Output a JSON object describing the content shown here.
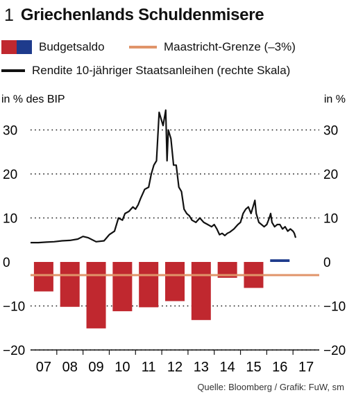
{
  "figure": {
    "number": "1",
    "title": "Griechenlands Schuldenmisere",
    "source": "Quelle: Bloomberg / Grafik: FuW, sm"
  },
  "legend": {
    "budget": "Budgetsaldo",
    "maastricht": "Maastricht-Grenze (–3%)",
    "yield": "Rendite 10-jähriger Staatsanleihen (rechte Skala)"
  },
  "chart_data": {
    "type": "bar",
    "left_axis_label": "in % des BIP",
    "right_axis_label": "in %",
    "ylim": [
      -20,
      35
    ],
    "yticks": [
      30,
      20,
      10,
      0,
      -10,
      -20
    ],
    "ytick_labels": [
      "30",
      "20",
      "10",
      "0",
      "−10",
      "−20"
    ],
    "categories": [
      "07",
      "08",
      "09",
      "10",
      "11",
      "12",
      "13",
      "14",
      "15",
      "16",
      "17"
    ],
    "colors": {
      "deficit": "#c0282f",
      "surplus": "#1e3b8c",
      "maastricht": "#e0946a",
      "yield": "#111111",
      "grid": "#111111"
    },
    "series": [
      {
        "name": "Budgetsaldo",
        "kind": "bar",
        "x": [
          "07",
          "08",
          "09",
          "10",
          "11",
          "12",
          "13",
          "14",
          "15",
          "16"
        ],
        "values": [
          -6.7,
          -10.2,
          -15.1,
          -11.2,
          -10.3,
          -8.9,
          -13.2,
          -3.6,
          -5.9,
          0.6
        ]
      },
      {
        "name": "Maastricht-Grenze (–3%)",
        "kind": "hline",
        "value": -3
      },
      {
        "name": "Rendite 10-jähriger Staatsanleihen (rechte Skala)",
        "kind": "line",
        "x": [
          2007.0,
          2007.3,
          2007.6,
          2007.9,
          2008.2,
          2008.5,
          2008.8,
          2009.0,
          2009.2,
          2009.5,
          2009.8,
          2010.0,
          2010.2,
          2010.35,
          2010.5,
          2010.6,
          2010.75,
          2010.9,
          2011.0,
          2011.1,
          2011.2,
          2011.35,
          2011.5,
          2011.6,
          2011.7,
          2011.8,
          2011.9,
          2011.95,
          2012.05,
          2012.15,
          2012.2,
          2012.25,
          2012.35,
          2012.45,
          2012.55,
          2012.65,
          2012.75,
          2012.85,
          2012.95,
          2013.05,
          2013.15,
          2013.3,
          2013.45,
          2013.6,
          2013.75,
          2013.9,
          2014.0,
          2014.1,
          2014.2,
          2014.3,
          2014.4,
          2014.5,
          2014.6,
          2014.75,
          2014.9,
          2015.0,
          2015.1,
          2015.2,
          2015.3,
          2015.4,
          2015.5,
          2015.55,
          2015.6,
          2015.7,
          2015.8,
          2015.9,
          2016.0,
          2016.1,
          2016.15,
          2016.2,
          2016.3,
          2016.4,
          2016.5,
          2016.6,
          2016.7,
          2016.8,
          2016.9,
          2017.0,
          2017.05,
          2017.1
        ],
        "values": [
          4.4,
          4.4,
          4.5,
          4.6,
          4.8,
          4.9,
          5.2,
          5.8,
          5.5,
          4.6,
          4.8,
          6.2,
          7.0,
          10.0,
          9.5,
          11.0,
          11.5,
          12.5,
          12.0,
          13.0,
          14.5,
          16.5,
          17.0,
          20.0,
          22.0,
          23.0,
          34.0,
          33.0,
          31.0,
          34.5,
          23.0,
          30.0,
          28.0,
          22.0,
          22.0,
          17.0,
          16.0,
          12.0,
          11.0,
          10.5,
          9.5,
          9.0,
          10.0,
          9.0,
          8.5,
          8.0,
          8.5,
          7.5,
          6.2,
          6.5,
          6.0,
          6.5,
          6.8,
          7.5,
          8.5,
          9.0,
          11.0,
          12.0,
          12.5,
          11.0,
          13.0,
          14.0,
          11.0,
          9.0,
          8.5,
          8.0,
          8.5,
          10.0,
          11.0,
          9.0,
          8.0,
          8.5,
          8.5,
          7.5,
          8.0,
          7.0,
          7.5,
          7.0,
          6.5,
          5.5
        ]
      }
    ]
  }
}
